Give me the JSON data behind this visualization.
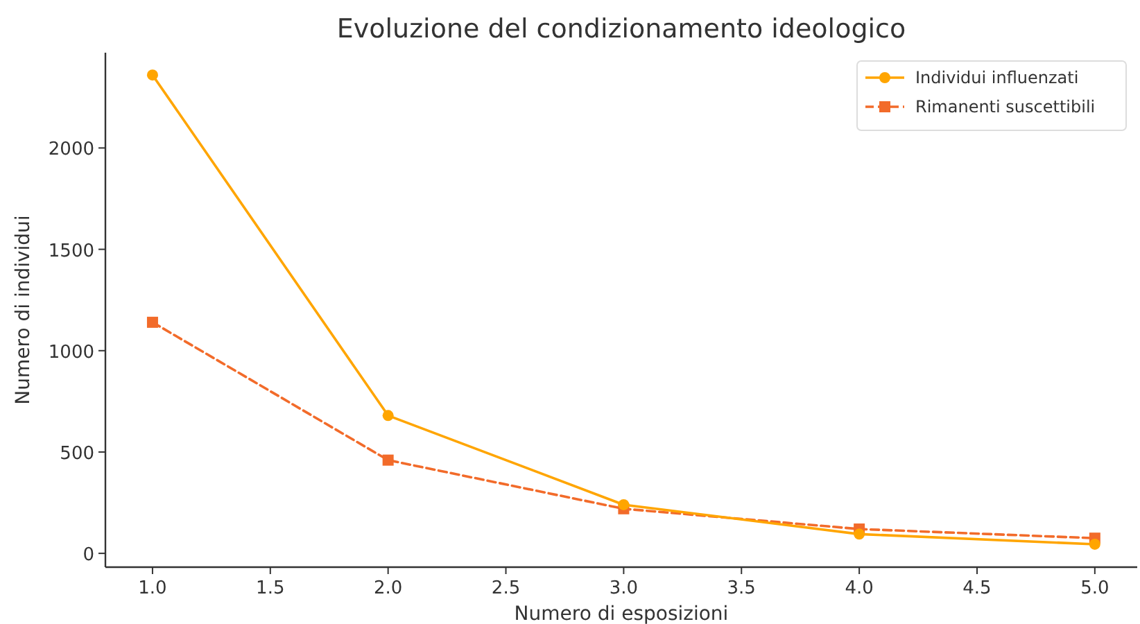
{
  "chart_data": {
    "type": "line",
    "title": "Evoluzione del condizionamento ideologico",
    "xlabel": "Numero di esposizioni",
    "ylabel": "Numero di individui",
    "x": [
      1,
      2,
      3,
      4,
      5
    ],
    "series": [
      {
        "name": "Individui influenzati",
        "color": "#ffa500",
        "values": [
          2360,
          680,
          240,
          95,
          45
        ],
        "marker": "circle",
        "line_style": "solid"
      },
      {
        "name": "Rimanenti suscettibili",
        "color": "#f26b2a",
        "values": [
          1140,
          460,
          220,
          120,
          75
        ],
        "marker": "square",
        "line_style": "dashed"
      }
    ],
    "xlim": [
      0.8,
      5.18
    ],
    "xticks": [
      {
        "value": 1,
        "label": "1.0"
      },
      {
        "value": 1.5,
        "label": "1.5"
      },
      {
        "value": 2,
        "label": "2.0"
      },
      {
        "value": 2.5,
        "label": "2.5"
      },
      {
        "value": 3,
        "label": "3.0"
      },
      {
        "value": 3.5,
        "label": "3.5"
      },
      {
        "value": 4,
        "label": "4.0"
      },
      {
        "value": 4.5,
        "label": "4.5"
      },
      {
        "value": 5,
        "label": "5.0"
      }
    ],
    "ylim": [
      -68,
      2470
    ],
    "yticks": [
      0,
      500,
      1000,
      1500,
      2000
    ],
    "grid": false,
    "legend": "top right"
  }
}
